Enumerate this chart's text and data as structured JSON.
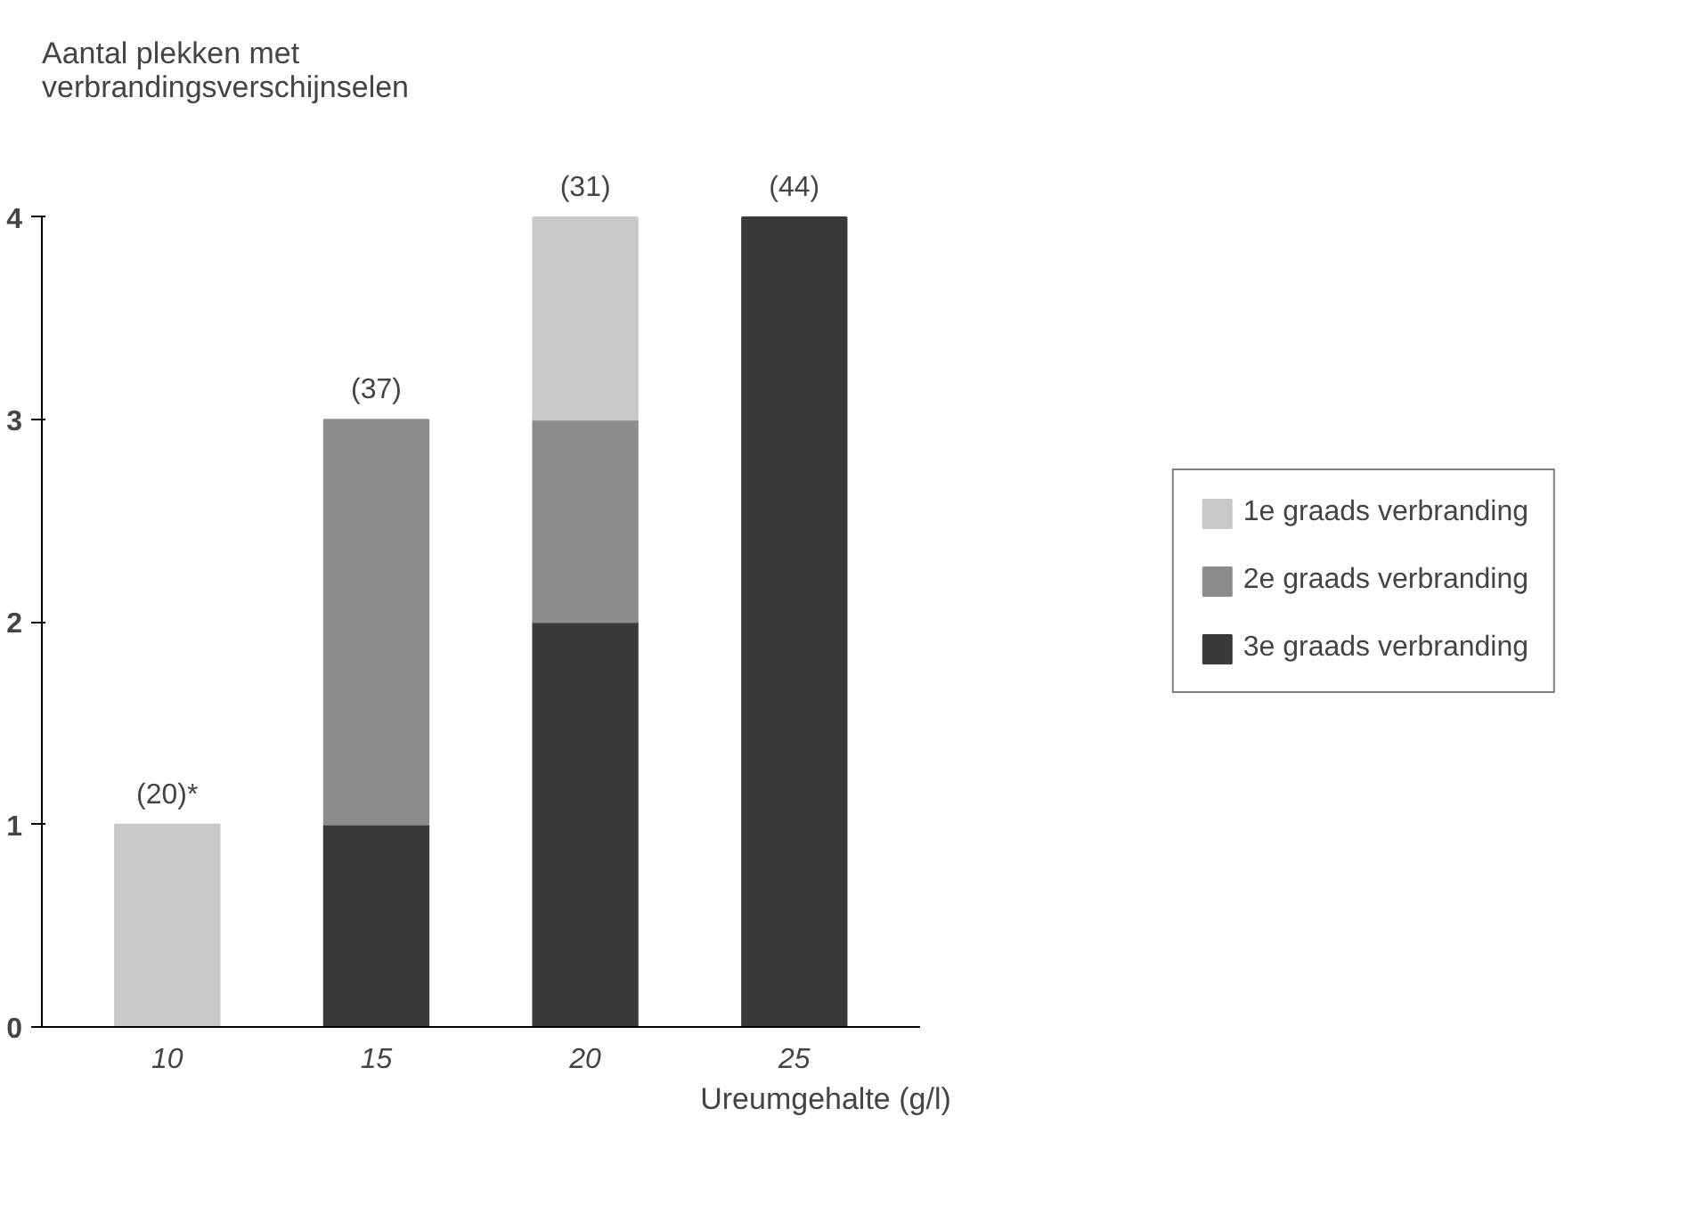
{
  "chart_data": {
    "type": "bar",
    "stacked": true,
    "ylabel": "Aantal plekken met\nverbrandingsverschijnselen",
    "xlabel": "Ureumgehalte (g/l)",
    "categories": [
      "10",
      "15",
      "20",
      "25"
    ],
    "series": [
      {
        "name": "3e graads verbranding",
        "color": "#3a3a3a",
        "values": [
          0,
          1,
          2,
          4
        ]
      },
      {
        "name": "2e graads verbranding",
        "color": "#8c8c8c",
        "values": [
          0,
          2,
          1,
          0
        ]
      },
      {
        "name": "1e graads verbranding",
        "color": "#c8c8c8",
        "values": [
          1,
          0,
          1,
          0
        ]
      }
    ],
    "annotations": [
      {
        "text": "(20)*",
        "x": "10",
        "y": 1
      },
      {
        "text": "(37)",
        "x": "15",
        "y": 3
      },
      {
        "text": "(31)",
        "x": "20",
        "y": 4
      },
      {
        "text": "(44)",
        "x": "25",
        "y": 4
      }
    ],
    "ylim": [
      0,
      4
    ],
    "yticks": [
      0,
      1,
      2,
      3,
      4
    ],
    "grid": false,
    "legend": "right"
  }
}
